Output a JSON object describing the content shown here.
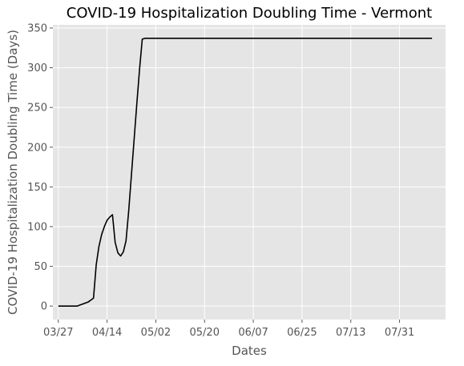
{
  "chart_data": {
    "type": "line",
    "title": "COVID-19 Hospitalization Doubling Time - Vermont",
    "xlabel": "Dates",
    "ylabel": "COVID-19 Hospitalization Doubling Time (Days)",
    "x_tick_labels": [
      "03/27",
      "04/14",
      "05/02",
      "05/20",
      "06/07",
      "06/25",
      "07/13",
      "07/31"
    ],
    "x_tick_days": [
      0,
      18,
      36,
      54,
      72,
      90,
      108,
      126
    ],
    "y_ticks": [
      0,
      50,
      100,
      150,
      200,
      250,
      300,
      350
    ],
    "xlim": [
      -2,
      143
    ],
    "ylim": [
      -17,
      354
    ],
    "grid": true,
    "background_color": "#e5e5e5",
    "grid_color": "#ffffff",
    "line_color": "#000000",
    "series": [
      {
        "x": [
          0,
          7,
          11,
          13,
          14,
          15,
          16,
          17,
          18,
          19,
          20,
          21,
          22,
          23,
          24,
          25,
          26,
          27,
          28,
          29,
          30,
          31,
          32,
          33,
          138
        ],
        "y": [
          0,
          0,
          5,
          10,
          52,
          75,
          90,
          100,
          108,
          112,
          115,
          80,
          67,
          63,
          68,
          82,
          120,
          165,
          210,
          255,
          298,
          336,
          337,
          337,
          337
        ]
      }
    ]
  }
}
